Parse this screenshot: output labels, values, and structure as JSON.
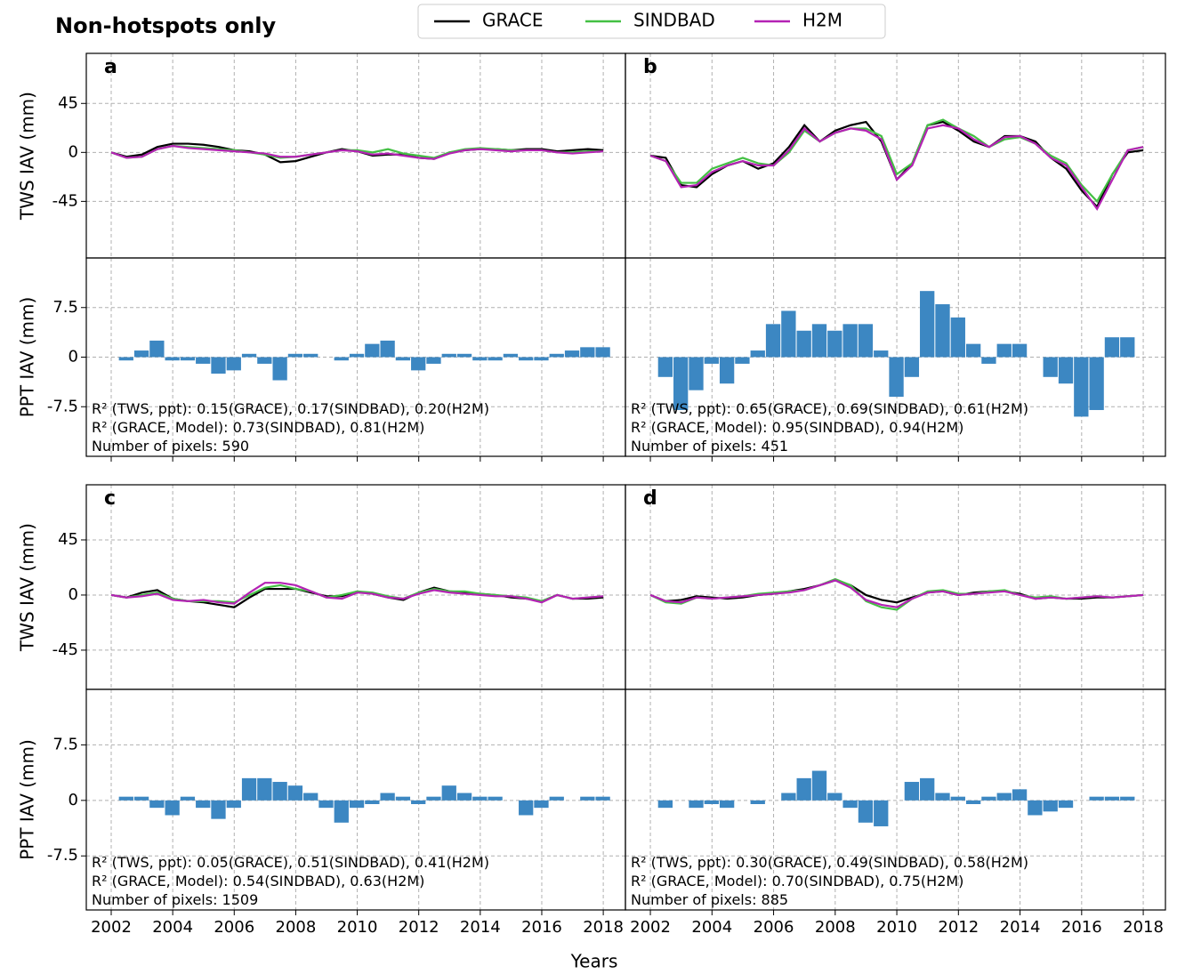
{
  "title": "Non-hotspots only",
  "xlabel": "Years",
  "chart_data": [
    {
      "type": "line",
      "label": "a",
      "ylabel": "TWS IAV (mm)",
      "x": [
        2002,
        2002.5,
        2003,
        2003.5,
        2004,
        2004.5,
        2005,
        2005.5,
        2006,
        2006.5,
        2007,
        2007.5,
        2008,
        2008.5,
        2009,
        2009.5,
        2010,
        2010.5,
        2011,
        2011.5,
        2012,
        2012.5,
        2013,
        2013.5,
        2014,
        2014.5,
        2015,
        2015.5,
        2016,
        2016.5,
        2017,
        2017.5,
        2018
      ],
      "series": [
        {
          "name": "GRACE",
          "color": "#000000",
          "values": [
            0,
            -4,
            -2,
            5,
            8,
            8,
            7,
            5,
            2,
            1,
            -2,
            -9,
            -8,
            -4,
            0,
            3,
            1,
            -3,
            -2,
            -2,
            -5,
            -6,
            0,
            2,
            3,
            3,
            2,
            3,
            3,
            1,
            2,
            3,
            2
          ]
        },
        {
          "name": "SINDBAD",
          "color": "#44c044",
          "values": [
            0,
            -5,
            -4,
            3,
            6,
            5,
            4,
            3,
            2,
            0,
            -2,
            -5,
            -4,
            -2,
            0,
            2,
            2,
            0,
            3,
            -1,
            -3,
            -5,
            0,
            3,
            4,
            3,
            2,
            2,
            2,
            0,
            0,
            1,
            1
          ]
        },
        {
          "name": "H2M",
          "color": "#b422b4",
          "values": [
            0,
            -5,
            -4,
            3,
            6,
            4,
            3,
            2,
            1,
            0,
            -1,
            -4,
            -4,
            -2,
            0,
            2,
            1,
            -2,
            -1,
            -3,
            -5,
            -6,
            -1,
            2,
            3,
            2,
            1,
            2,
            2,
            0,
            -1,
            0,
            1
          ]
        }
      ],
      "xlim": [
        2001.19,
        2018.72
      ],
      "xticks": [
        2002,
        2004,
        2006,
        2008,
        2010,
        2012,
        2014,
        2016,
        2018
      ],
      "xtick_labels": false,
      "ylim": [
        -97,
        91
      ],
      "yticks": [
        -45,
        0,
        45
      ],
      "ytick_labels": true,
      "grid": true
    },
    {
      "type": "bar",
      "ylabel": "PPT IAV (mm)",
      "x": [
        2002,
        2002.5,
        2003,
        2003.5,
        2004,
        2004.5,
        2005,
        2005.5,
        2006,
        2006.5,
        2007,
        2007.5,
        2008,
        2008.5,
        2009,
        2009.5,
        2010,
        2010.5,
        2011,
        2011.5,
        2012,
        2012.5,
        2013,
        2013.5,
        2014,
        2014.5,
        2015,
        2015.5,
        2016,
        2016.5,
        2017,
        2017.5,
        2018
      ],
      "values": [
        0,
        -0.5,
        1,
        2.5,
        -0.5,
        -0.5,
        -1,
        -2.5,
        -2,
        0.5,
        -1,
        -3.5,
        0.5,
        0.5,
        0,
        -0.5,
        0.5,
        2,
        2.5,
        -0.5,
        -2,
        -1,
        0.5,
        0.5,
        -0.5,
        -0.5,
        0.5,
        -0.5,
        -0.5,
        0.5,
        1,
        1.5,
        1.5
      ],
      "color": "#3c87c2",
      "annotations": [
        "R² (TWS, ppt): 0.15(GRACE), 0.17(SINDBAD), 0.20(H2M)",
        "R² (GRACE, Model): 0.73(SINDBAD), 0.81(H2M)",
        "Number of pixels: 590"
      ],
      "xlim": [
        2001.19,
        2018.72
      ],
      "xticks": [
        2002,
        2004,
        2006,
        2008,
        2010,
        2012,
        2014,
        2016,
        2018
      ],
      "xtick_labels": false,
      "ylim": [
        -15,
        15
      ],
      "yticks": [
        -7.5,
        0.0,
        7.5
      ],
      "ytick_labels": true,
      "grid": true
    },
    {
      "type": "line",
      "label": "b",
      "x": [
        2002,
        2002.5,
        2003,
        2003.5,
        2004,
        2004.5,
        2005,
        2005.5,
        2006,
        2006.5,
        2007,
        2007.5,
        2008,
        2008.5,
        2009,
        2009.5,
        2010,
        2010.5,
        2011,
        2011.5,
        2012,
        2012.5,
        2013,
        2013.5,
        2014,
        2014.5,
        2015,
        2015.5,
        2016,
        2016.5,
        2017,
        2017.5,
        2018
      ],
      "series": [
        {
          "name": "GRACE",
          "color": "#000000",
          "values": [
            -3,
            -5,
            -30,
            -32,
            -20,
            -12,
            -8,
            -15,
            -10,
            5,
            25,
            10,
            20,
            25,
            28,
            10,
            -25,
            -10,
            25,
            28,
            20,
            10,
            5,
            15,
            15,
            10,
            -5,
            -15,
            -35,
            -50,
            -20,
            0,
            2
          ]
        },
        {
          "name": "SINDBAD",
          "color": "#44c044",
          "values": [
            -3,
            -8,
            -28,
            -28,
            -15,
            -10,
            -5,
            -10,
            -12,
            0,
            20,
            10,
            18,
            22,
            22,
            15,
            -20,
            -10,
            25,
            30,
            22,
            15,
            5,
            12,
            14,
            8,
            -3,
            -10,
            -30,
            -45,
            -20,
            2,
            5
          ]
        },
        {
          "name": "H2M",
          "color": "#b422b4",
          "values": [
            -3,
            -8,
            -32,
            -30,
            -18,
            -12,
            -8,
            -12,
            -12,
            2,
            22,
            10,
            18,
            22,
            20,
            12,
            -25,
            -12,
            22,
            25,
            22,
            12,
            5,
            14,
            15,
            8,
            -5,
            -12,
            -32,
            -52,
            -25,
            2,
            5
          ]
        }
      ],
      "xlim": [
        2001.19,
        2018.72
      ],
      "xticks": [
        2002,
        2004,
        2006,
        2008,
        2010,
        2012,
        2014,
        2016,
        2018
      ],
      "xtick_labels": false,
      "ylim": [
        -97,
        91
      ],
      "yticks": [
        -45,
        0,
        45
      ],
      "ytick_labels": false,
      "grid": true
    },
    {
      "type": "bar",
      "x": [
        2002,
        2002.5,
        2003,
        2003.5,
        2004,
        2004.5,
        2005,
        2005.5,
        2006,
        2006.5,
        2007,
        2007.5,
        2008,
        2008.5,
        2009,
        2009.5,
        2010,
        2010.5,
        2011,
        2011.5,
        2012,
        2012.5,
        2013,
        2013.5,
        2014,
        2014.5,
        2015,
        2015.5,
        2016,
        2016.5,
        2017,
        2017.5,
        2018
      ],
      "values": [
        0,
        -3,
        -8,
        -5,
        -1,
        -4,
        -1,
        1,
        5,
        7,
        4,
        5,
        4,
        5,
        5,
        1,
        -6,
        -3,
        10,
        8,
        6,
        2,
        -1,
        2,
        2,
        0,
        -3,
        -4,
        -9,
        -8,
        3,
        3,
        0
      ],
      "color": "#3c87c2",
      "annotations": [
        "R² (TWS, ppt): 0.65(GRACE), 0.69(SINDBAD), 0.61(H2M)",
        "R² (GRACE, Model): 0.95(SINDBAD), 0.94(H2M)",
        "Number of pixels: 451"
      ],
      "xlim": [
        2001.19,
        2018.72
      ],
      "xticks": [
        2002,
        2004,
        2006,
        2008,
        2010,
        2012,
        2014,
        2016,
        2018
      ],
      "xtick_labels": false,
      "ylim": [
        -15,
        15
      ],
      "yticks": [
        -7.5,
        0.0,
        7.5
      ],
      "ytick_labels": false,
      "grid": true
    },
    {
      "type": "line",
      "label": "c",
      "ylabel": "TWS IAV (mm)",
      "x": [
        2002,
        2002.5,
        2003,
        2003.5,
        2004,
        2004.5,
        2005,
        2005.5,
        2006,
        2006.5,
        2007,
        2007.5,
        2008,
        2008.5,
        2009,
        2009.5,
        2010,
        2010.5,
        2011,
        2011.5,
        2012,
        2012.5,
        2013,
        2013.5,
        2014,
        2014.5,
        2015,
        2015.5,
        2016,
        2016.5,
        2017,
        2017.5,
        2018
      ],
      "series": [
        {
          "name": "GRACE",
          "color": "#000000",
          "values": [
            0,
            -2,
            2,
            4,
            -3,
            -5,
            -6,
            -8,
            -10,
            -2,
            5,
            5,
            5,
            2,
            -1,
            -1,
            3,
            1,
            -2,
            -4,
            2,
            6,
            3,
            2,
            1,
            0,
            -2,
            -3,
            -5,
            0,
            -3,
            -3,
            -2
          ]
        },
        {
          "name": "SINDBAD",
          "color": "#44c044",
          "values": [
            0,
            -2,
            0,
            2,
            -3,
            -5,
            -5,
            -5,
            -6,
            0,
            6,
            8,
            5,
            3,
            -2,
            0,
            3,
            2,
            -1,
            -3,
            2,
            5,
            3,
            3,
            1,
            0,
            -1,
            -2,
            -5,
            0,
            -3,
            -2,
            -1
          ]
        },
        {
          "name": "H2M",
          "color": "#b422b4",
          "values": [
            0,
            -2,
            -1,
            1,
            -4,
            -5,
            -4,
            -6,
            -7,
            2,
            10,
            10,
            8,
            3,
            -2,
            -3,
            2,
            1,
            -2,
            -3,
            1,
            4,
            2,
            1,
            0,
            -1,
            -1,
            -3,
            -6,
            0,
            -3,
            -2,
            -1
          ]
        }
      ],
      "xlim": [
        2001.19,
        2018.72
      ],
      "xticks": [
        2002,
        2004,
        2006,
        2008,
        2010,
        2012,
        2014,
        2016,
        2018
      ],
      "xtick_labels": false,
      "ylim": [
        -77,
        90
      ],
      "yticks": [
        -45,
        0,
        45
      ],
      "ytick_labels": true,
      "grid": true
    },
    {
      "type": "bar",
      "ylabel": "PPT IAV (mm)",
      "x": [
        2002,
        2002.5,
        2003,
        2003.5,
        2004,
        2004.5,
        2005,
        2005.5,
        2006,
        2006.5,
        2007,
        2007.5,
        2008,
        2008.5,
        2009,
        2009.5,
        2010,
        2010.5,
        2011,
        2011.5,
        2012,
        2012.5,
        2013,
        2013.5,
        2014,
        2014.5,
        2015,
        2015.5,
        2016,
        2016.5,
        2017,
        2017.5,
        2018
      ],
      "values": [
        0,
        0.5,
        0.5,
        -1,
        -2,
        0.5,
        -1,
        -2.5,
        -1,
        3,
        3,
        2.5,
        2,
        1,
        -1,
        -3,
        -1,
        -0.5,
        1,
        0.5,
        -0.5,
        0.5,
        2,
        1,
        0.5,
        0.5,
        0,
        -2,
        -1,
        0.5,
        0,
        0.5,
        0.5
      ],
      "color": "#3c87c2",
      "annotations": [
        "R² (TWS, ppt): 0.05(GRACE), 0.51(SINDBAD), 0.41(H2M)",
        "R² (GRACE, Model): 0.54(SINDBAD), 0.63(H2M)",
        "Number of pixels: 1509"
      ],
      "xlim": [
        2001.19,
        2018.72
      ],
      "xticks": [
        2002,
        2004,
        2006,
        2008,
        2010,
        2012,
        2014,
        2016,
        2018
      ],
      "xtick_labels": true,
      "ylim": [
        -14.8,
        15
      ],
      "yticks": [
        -7.5,
        0.0,
        7.5
      ],
      "ytick_labels": true,
      "grid": true
    },
    {
      "type": "line",
      "label": "d",
      "x": [
        2002,
        2002.5,
        2003,
        2003.5,
        2004,
        2004.5,
        2005,
        2005.5,
        2006,
        2006.5,
        2007,
        2007.5,
        2008,
        2008.5,
        2009,
        2009.5,
        2010,
        2010.5,
        2011,
        2011.5,
        2012,
        2012.5,
        2013,
        2013.5,
        2014,
        2014.5,
        2015,
        2015.5,
        2016,
        2016.5,
        2017,
        2017.5,
        2018
      ],
      "series": [
        {
          "name": "GRACE",
          "color": "#000000",
          "values": [
            0,
            -5,
            -4,
            -1,
            -2,
            -3,
            -2,
            0,
            1,
            3,
            5,
            8,
            12,
            8,
            0,
            -4,
            -6,
            -2,
            2,
            3,
            0,
            2,
            3,
            3,
            1,
            -3,
            -2,
            -3,
            -3,
            -2,
            -2,
            -1,
            0
          ]
        },
        {
          "name": "SINDBAD",
          "color": "#44c044",
          "values": [
            0,
            -6,
            -7,
            -2,
            -3,
            -2,
            -1,
            1,
            2,
            3,
            4,
            8,
            13,
            8,
            -5,
            -10,
            -12,
            -3,
            3,
            4,
            1,
            1,
            3,
            4,
            0,
            -2,
            -1,
            -3,
            -2,
            -1,
            -2,
            -1,
            0
          ]
        },
        {
          "name": "H2M",
          "color": "#b422b4",
          "values": [
            0,
            -5,
            -6,
            -2,
            -3,
            -2,
            -1,
            0,
            1,
            2,
            4,
            8,
            12,
            6,
            -4,
            -8,
            -10,
            -3,
            2,
            3,
            0,
            1,
            2,
            3,
            0,
            -3,
            -2,
            -3,
            -2,
            -1,
            -2,
            -1,
            0
          ]
        }
      ],
      "xlim": [
        2001.19,
        2018.72
      ],
      "xticks": [
        2002,
        2004,
        2006,
        2008,
        2010,
        2012,
        2014,
        2016,
        2018
      ],
      "xtick_labels": false,
      "ylim": [
        -77,
        90
      ],
      "yticks": [
        -45,
        0,
        45
      ],
      "ytick_labels": false,
      "grid": true
    },
    {
      "type": "bar",
      "x": [
        2002,
        2002.5,
        2003,
        2003.5,
        2004,
        2004.5,
        2005,
        2005.5,
        2006,
        2006.5,
        2007,
        2007.5,
        2008,
        2008.5,
        2009,
        2009.5,
        2010,
        2010.5,
        2011,
        2011.5,
        2012,
        2012.5,
        2013,
        2013.5,
        2014,
        2014.5,
        2015,
        2015.5,
        2016,
        2016.5,
        2017,
        2017.5,
        2018
      ],
      "values": [
        0,
        -1,
        0,
        -1,
        -0.5,
        -1,
        0,
        -0.5,
        0,
        1,
        3,
        4,
        1,
        -1,
        -3,
        -3.5,
        0,
        2.5,
        3,
        1,
        0.5,
        -0.5,
        0.5,
        1,
        1.5,
        -2,
        -1.5,
        -1,
        0,
        0.5,
        0.5,
        0.5,
        0
      ],
      "color": "#3c87c2",
      "annotations": [
        "R² (TWS, ppt): 0.30(GRACE), 0.49(SINDBAD), 0.58(H2M)",
        "R² (GRACE, Model): 0.70(SINDBAD), 0.75(H2M)",
        "Number of pixels: 885"
      ],
      "xlim": [
        2001.19,
        2018.72
      ],
      "xticks": [
        2002,
        2004,
        2006,
        2008,
        2010,
        2012,
        2014,
        2016,
        2018
      ],
      "xtick_labels": true,
      "ylim": [
        -14.8,
        15
      ],
      "yticks": [
        -7.5,
        0.0,
        7.5
      ],
      "ytick_labels": false,
      "grid": true
    }
  ]
}
